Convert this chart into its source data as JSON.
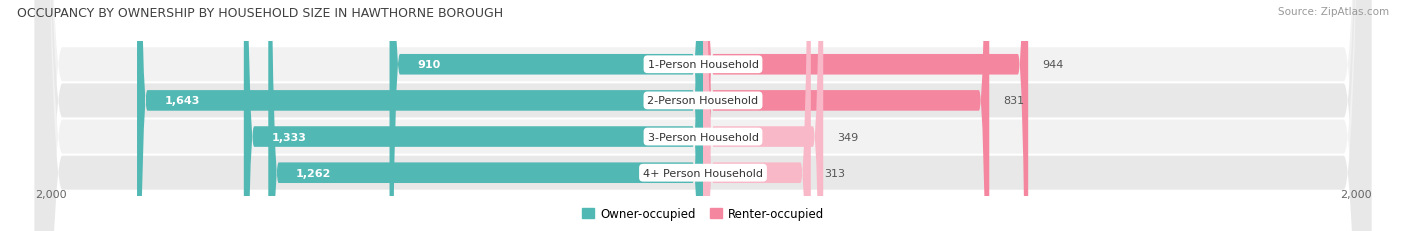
{
  "title": "OCCUPANCY BY OWNERSHIP BY HOUSEHOLD SIZE IN HAWTHORNE BOROUGH",
  "source": "Source: ZipAtlas.com",
  "categories": [
    "1-Person Household",
    "2-Person Household",
    "3-Person Household",
    "4+ Person Household"
  ],
  "owner_values": [
    910,
    1643,
    1333,
    1262
  ],
  "renter_values": [
    944,
    831,
    349,
    313
  ],
  "max_scale": 2000,
  "owner_color": "#52b8b4",
  "renter_color": "#f4879f",
  "renter_color_light": "#f9b8c8",
  "row_bg_colors": [
    "#f2f2f2",
    "#e8e8e8",
    "#f2f2f2",
    "#e8e8e8"
  ],
  "title_color": "#404040",
  "value_color_inside": "#ffffff",
  "value_color_outside": "#555555",
  "legend_owner": "Owner-occupied",
  "legend_renter": "Renter-occupied",
  "scale_label": "2,000"
}
